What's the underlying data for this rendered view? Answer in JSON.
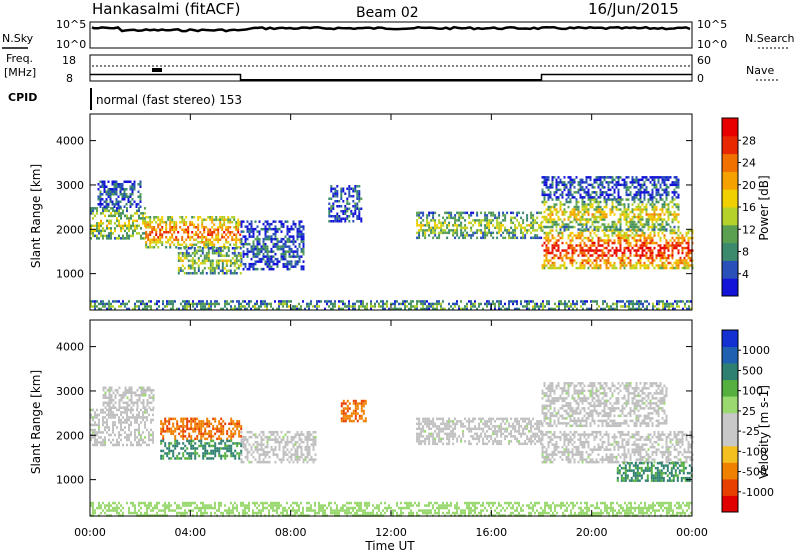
{
  "header": {
    "station": "Hankasalmi (fitACF)",
    "beam": "Beam 02",
    "date": "16/Jun/2015"
  },
  "legend_labels": {
    "nsky": "N.Sky",
    "nsearch": "N.Search",
    "freq_line1": "Freq.",
    "freq_line2": "[MHz]",
    "nave": "Nave",
    "cpid": "CPID"
  },
  "noise_panel": {
    "left_ticks": [
      "10^5",
      "10^0"
    ],
    "right_ticks": [
      "10^5",
      "10^0"
    ],
    "nsky_level_fraction": 0.8
  },
  "freq_panel": {
    "left_ticks": [
      "18",
      "8"
    ],
    "right_ticks": [
      "60",
      "0"
    ],
    "nave_segments": [
      {
        "start_hour": 0,
        "end_hour": 6,
        "value_fraction": 0.25
      },
      {
        "start_hour": 6,
        "end_hour": 18,
        "value_fraction": 0.05
      },
      {
        "start_hour": 18,
        "end_hour": 24,
        "value_fraction": 0.25
      }
    ]
  },
  "cpid_text": "normal (fast stereo) 153",
  "colors": {
    "power_scale": [
      "#1414d8",
      "#2850b8",
      "#3c8a6e",
      "#5aa050",
      "#b4d22a",
      "#f0d000",
      "#f5a200",
      "#f07000",
      "#e82800",
      "#e80000"
    ],
    "velocity_scale": [
      "#1430d0",
      "#2060b0",
      "#2e8070",
      "#55b040",
      "#9ad870",
      "#c8c8c8",
      "#c8c8c8",
      "#f4c020",
      "#f08000",
      "#e84000",
      "#e00000"
    ],
    "ground_scatter": "#c0c0c0"
  },
  "chart_data": [
    {
      "type": "heatmap",
      "title": "Power",
      "xlabel": "",
      "ylabel": "Slant Range [km]",
      "x_range_hours": [
        0,
        24
      ],
      "ylim_km": [
        180,
        4600
      ],
      "y_ticks": [
        "1000",
        "2000",
        "3000",
        "4000"
      ],
      "colorbar_label": "Power [dB]",
      "colorbar_range": [
        0,
        32
      ],
      "colorbar_ticks": [
        "4",
        "8",
        "12",
        "16",
        "20",
        "24",
        "28"
      ],
      "echo_regions": [
        {
          "t0": 0.0,
          "t1": 2.2,
          "r0": 1800,
          "r1": 2500,
          "level": 0.45
        },
        {
          "t0": 2.2,
          "t1": 6.0,
          "r0": 1600,
          "r1": 2300,
          "level": 0.7
        },
        {
          "t0": 0.3,
          "t1": 2.0,
          "r0": 2500,
          "r1": 3100,
          "level": 0.2
        },
        {
          "t0": 3.5,
          "t1": 6.0,
          "r0": 1000,
          "r1": 1600,
          "level": 0.4
        },
        {
          "t0": 6.0,
          "t1": 8.5,
          "r0": 1100,
          "r1": 2200,
          "level": 0.15
        },
        {
          "t0": 9.5,
          "t1": 10.8,
          "r0": 2200,
          "r1": 3000,
          "level": 0.15
        },
        {
          "t0": 13.0,
          "t1": 18.0,
          "r0": 1800,
          "r1": 2400,
          "level": 0.4
        },
        {
          "t0": 18.0,
          "t1": 24.0,
          "r0": 1100,
          "r1": 2000,
          "level": 0.82
        },
        {
          "t0": 18.0,
          "t1": 23.5,
          "r0": 2000,
          "r1": 2700,
          "level": 0.5
        },
        {
          "t0": 18.0,
          "t1": 23.5,
          "r0": 2700,
          "r1": 3200,
          "level": 0.15
        },
        {
          "t0": 0.0,
          "t1": 24.0,
          "r0": 180,
          "r1": 400,
          "level": 0.3
        }
      ]
    },
    {
      "type": "heatmap",
      "title": "Velocity",
      "xlabel": "Time UT",
      "ylabel": "Slant Range [km]",
      "x_range_hours": [
        0,
        24
      ],
      "x_ticks": [
        "00:00",
        "04:00",
        "08:00",
        "12:00",
        "16:00",
        "20:00",
        "00:00"
      ],
      "ylim_km": [
        180,
        4600
      ],
      "y_ticks": [
        "1000",
        "2000",
        "3000",
        "4000"
      ],
      "colorbar_label": "Velocity [m s-1]",
      "colorbar_ticks": [
        "1000",
        "500",
        "100",
        "25",
        "-25",
        "-100",
        "-500",
        "-1000"
      ],
      "echo_regions": [
        {
          "t0": 0.0,
          "t1": 2.5,
          "r0": 1800,
          "r1": 2600,
          "class": "ground"
        },
        {
          "t0": 0.5,
          "t1": 2.5,
          "r0": 2600,
          "r1": 3100,
          "class": "ground"
        },
        {
          "t0": 2.8,
          "t1": 6.0,
          "r0": 1900,
          "r1": 2400,
          "class": "away"
        },
        {
          "t0": 2.8,
          "t1": 6.0,
          "r0": 1500,
          "r1": 1900,
          "class": "toward"
        },
        {
          "t0": 6.0,
          "t1": 9.0,
          "r0": 1400,
          "r1": 2100,
          "class": "ground"
        },
        {
          "t0": 10.0,
          "t1": 11.0,
          "r0": 2300,
          "r1": 2800,
          "class": "away"
        },
        {
          "t0": 13.0,
          "t1": 18.0,
          "r0": 1800,
          "r1": 2400,
          "class": "ground"
        },
        {
          "t0": 18.0,
          "t1": 24.0,
          "r0": 1400,
          "r1": 2100,
          "class": "ground"
        },
        {
          "t0": 18.0,
          "t1": 23.0,
          "r0": 2200,
          "r1": 3200,
          "class": "ground"
        },
        {
          "t0": 21.0,
          "t1": 24.0,
          "r0": 1000,
          "r1": 1400,
          "class": "toward"
        },
        {
          "t0": 0.0,
          "t1": 24.0,
          "r0": 180,
          "r1": 500,
          "class": "slow"
        }
      ]
    }
  ]
}
